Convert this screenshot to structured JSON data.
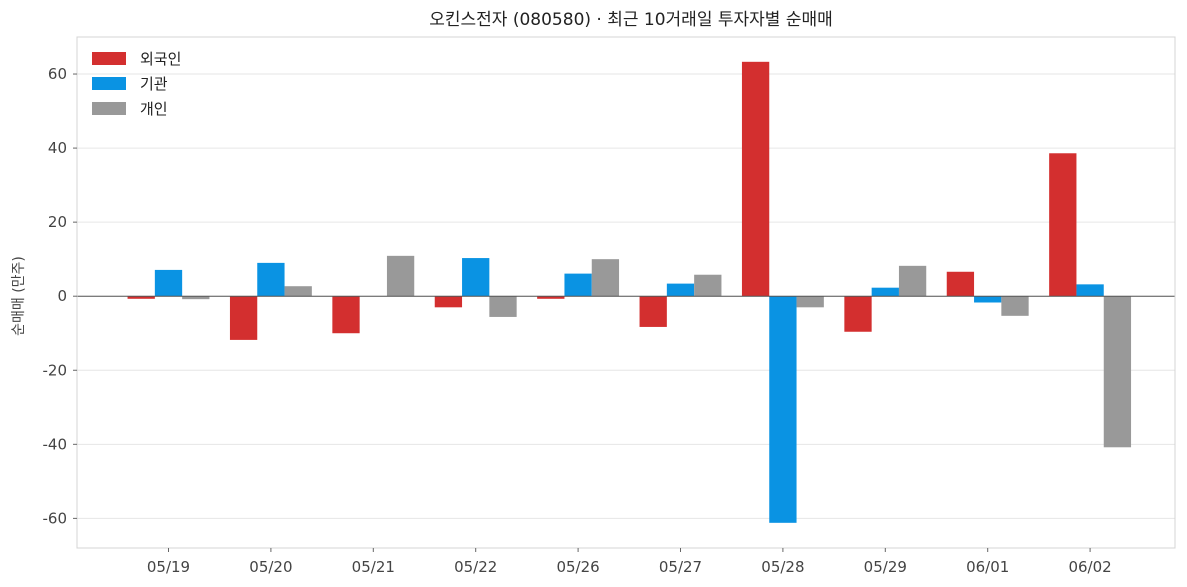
{
  "chart_data": {
    "type": "bar",
    "title": "오킨스전자 (080580) · 최근 10거래일 투자자별 순매매",
    "xlabel": "",
    "ylabel": "순매매 (만주)",
    "categories": [
      "05/19",
      "05/20",
      "05/21",
      "05/22",
      "05/26",
      "05/27",
      "05/28",
      "05/29",
      "06/01",
      "06/02"
    ],
    "series": [
      {
        "name": "외국인",
        "color": "#d32f2f",
        "values": [
          -0.7,
          -11.8,
          -10.0,
          -3.0,
          -0.7,
          -8.3,
          63.3,
          -9.6,
          6.6,
          38.6
        ]
      },
      {
        "name": "기관",
        "color": "#0a93e3",
        "values": [
          7.1,
          9.0,
          0.0,
          10.3,
          6.1,
          3.4,
          -61.2,
          2.3,
          -1.7,
          3.2
        ]
      },
      {
        "name": "개인",
        "color": "#999999",
        "values": [
          -0.8,
          2.7,
          10.9,
          -5.6,
          10.0,
          5.8,
          -3.0,
          8.2,
          -5.3,
          -40.8
        ]
      }
    ],
    "ylim": [
      -68,
      70
    ],
    "yticks": [
      -60,
      -40,
      -20,
      0,
      20,
      40,
      60
    ],
    "grid": true,
    "legend": "top-left"
  }
}
